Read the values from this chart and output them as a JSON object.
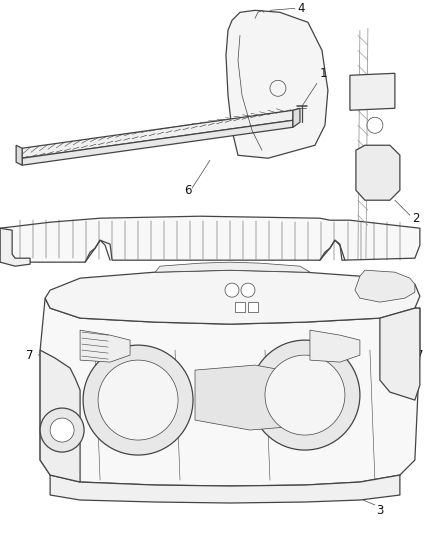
{
  "background_color": "#ffffff",
  "line_color": "#444444",
  "label_color": "#111111",
  "fig_width": 4.38,
  "fig_height": 5.33,
  "dpi": 100,
  "label_fontsize": 8.5
}
